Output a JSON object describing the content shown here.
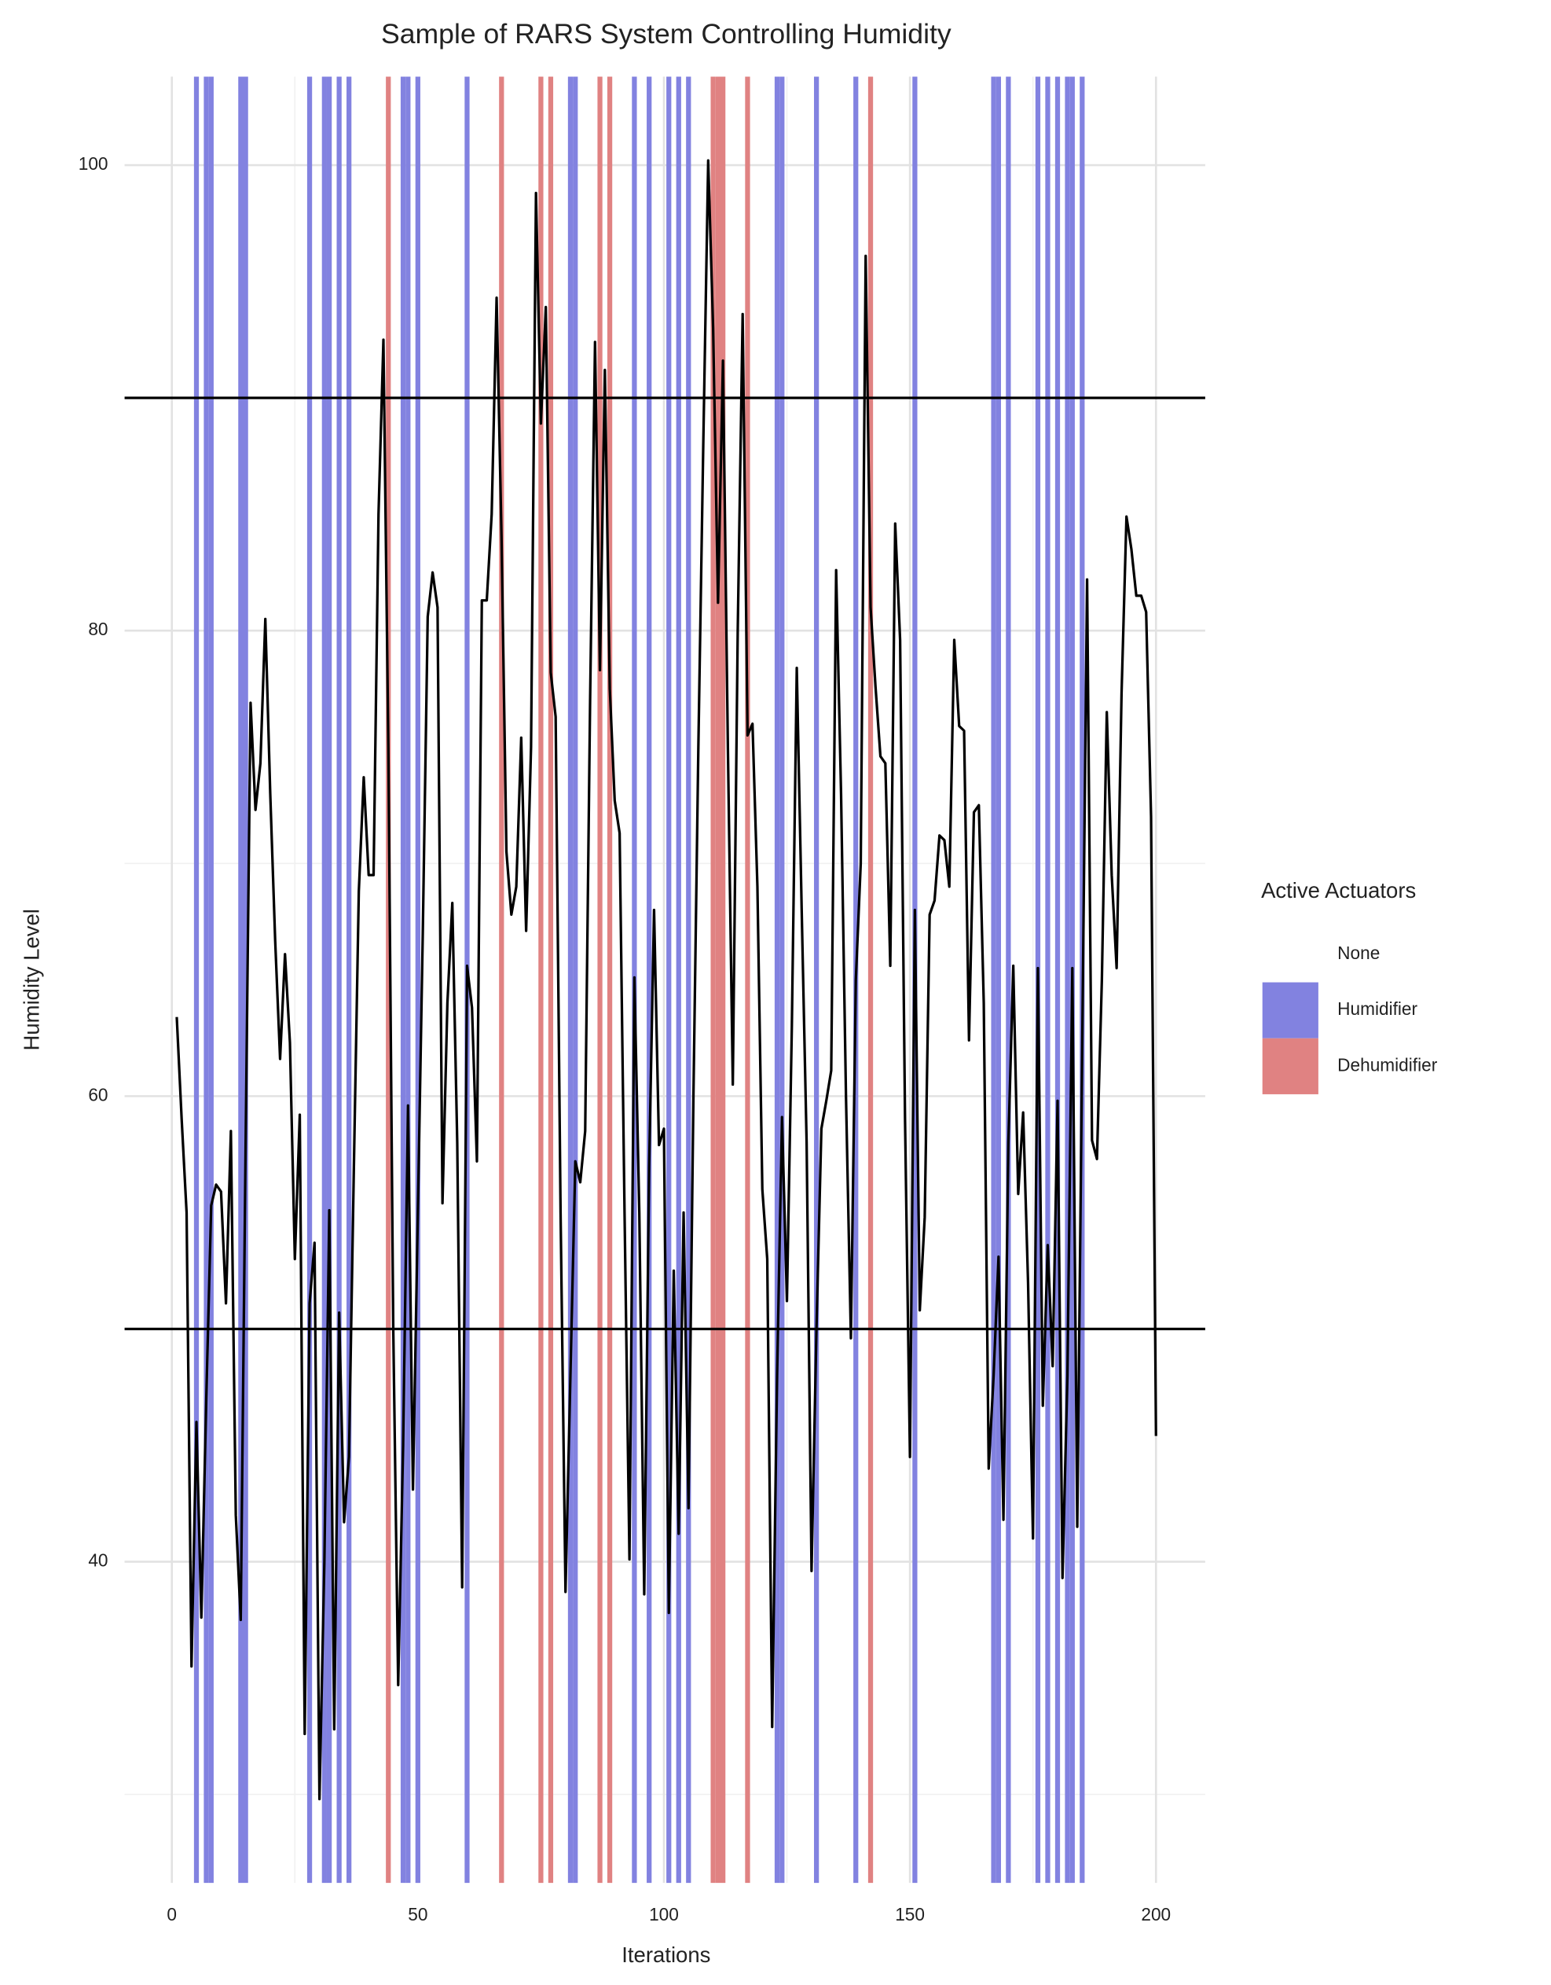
{
  "chart_data": {
    "type": "line",
    "title": "Sample of RARS System Controlling Humidity",
    "x_label": "Iterations",
    "y_label": "Humidity Level",
    "legend_title": "Active Actuators",
    "legend_position": "right",
    "x": [
      1,
      2,
      3,
      4,
      5,
      6,
      7,
      8,
      9,
      10,
      11,
      12,
      13,
      14,
      15,
      16,
      17,
      18,
      19,
      20,
      21,
      22,
      23,
      24,
      25,
      26,
      27,
      28,
      29,
      30,
      31,
      32,
      33,
      34,
      35,
      36,
      37,
      38,
      39,
      40,
      41,
      42,
      43,
      44,
      45,
      46,
      47,
      48,
      49,
      50,
      51,
      52,
      53,
      54,
      55,
      56,
      57,
      58,
      59,
      60,
      61,
      62,
      63,
      64,
      65,
      66,
      67,
      68,
      69,
      70,
      71,
      72,
      73,
      74,
      75,
      76,
      77,
      78,
      79,
      80,
      81,
      82,
      83,
      84,
      85,
      86,
      87,
      88,
      89,
      90,
      91,
      92,
      93,
      94,
      95,
      96,
      97,
      98,
      99,
      100,
      101,
      102,
      103,
      104,
      105,
      106,
      107,
      108,
      109,
      110,
      111,
      112,
      113,
      114,
      115,
      116,
      117,
      118,
      119,
      120,
      121,
      122,
      123,
      124,
      125,
      126,
      127,
      128,
      129,
      130,
      131,
      132,
      133,
      134,
      135,
      136,
      137,
      138,
      139,
      140,
      141,
      142,
      143,
      144,
      145,
      146,
      147,
      148,
      149,
      150,
      151,
      152,
      153,
      154,
      155,
      156,
      157,
      158,
      159,
      160,
      161,
      162,
      163,
      164,
      165,
      166,
      167,
      168,
      169,
      170,
      171,
      172,
      173,
      174,
      175,
      176,
      177,
      178,
      179,
      180,
      181,
      182,
      183,
      184,
      185,
      186,
      187,
      188,
      189,
      190,
      191,
      192,
      193,
      194,
      195,
      196,
      197,
      198,
      199,
      200
    ],
    "series": [
      {
        "name": "Humidity Level",
        "color": "#000000",
        "values": [
          63.4,
          59,
          55,
          35.5,
          46,
          37.6,
          47,
          55.3,
          56.2,
          55.9,
          51.1,
          58.5,
          42,
          37.5,
          58,
          76.9,
          72.3,
          74.3,
          80.5,
          73,
          66.7,
          61.6,
          66.1,
          62.3,
          53,
          59.2,
          32.6,
          51.1,
          53.7,
          29.8,
          40,
          55.1,
          32.8,
          50.7,
          41.7,
          44.5,
          57,
          68.8,
          73.7,
          69.5,
          69.5,
          85,
          92.5,
          75,
          50,
          34.7,
          45,
          59.6,
          43.1,
          55,
          67,
          80.6,
          82.5,
          81,
          55.4,
          64,
          68.3,
          58,
          38.9,
          65.6,
          63.8,
          57.2,
          81.3,
          81.3,
          85,
          94.3,
          84,
          70.5,
          67.8,
          69,
          75.4,
          67.1,
          75,
          98.8,
          88.9,
          93.9,
          78.2,
          76.3,
          55,
          38.7,
          48,
          57.2,
          56.3,
          58.5,
          77,
          92.4,
          78.3,
          91.2,
          77.5,
          72.7,
          71.3,
          55,
          40.1,
          65.1,
          55,
          38.6,
          57,
          68,
          57.9,
          58.6,
          37.8,
          52.5,
          41.2,
          55,
          42.3,
          60,
          75,
          88,
          100.2,
          93,
          81.2,
          91.6,
          75,
          60.5,
          80,
          93.6,
          75.5,
          76,
          69,
          56,
          53,
          32.9,
          48,
          59.1,
          51.2,
          63,
          78.4,
          68,
          58,
          39.6,
          50,
          58.6,
          59.8,
          61.1,
          82.6,
          73,
          60,
          49.6,
          65,
          70,
          96.1,
          81,
          77.6,
          74.6,
          74.3,
          65.6,
          84.6,
          79.6,
          59,
          44.5,
          68,
          50.8,
          54.8,
          67.8,
          68.4,
          71.2,
          71,
          69,
          79.6,
          75.9,
          75.7,
          62.4,
          72.2,
          72.5,
          64,
          44,
          48,
          53.1,
          41.8,
          58,
          65.6,
          55.8,
          59.3,
          52,
          41,
          65.5,
          46.7,
          53.6,
          48.4,
          59.8,
          39.3,
          48,
          65.5,
          41.5,
          62,
          82.2,
          58.1,
          57.3,
          65,
          76.5,
          69.5,
          65.5,
          77.3,
          84.9,
          83.5,
          81.5,
          81.5,
          80.8,
          72,
          45.4
        ]
      }
    ],
    "bands": [
      {
        "name": "None",
        "color": "#ffffff",
        "x": []
      },
      {
        "name": "Humidifier",
        "color": "#8282e0",
        "x": [
          5,
          7,
          8,
          14,
          15,
          28,
          31,
          32,
          34,
          36,
          47,
          48,
          50,
          60,
          81,
          82,
          94,
          97,
          101,
          103,
          105,
          123,
          124,
          131,
          139,
          151,
          167,
          168,
          170,
          176,
          178,
          180,
          182,
          183,
          185
        ]
      },
      {
        "name": "Dehumidifier",
        "color": "#e08282",
        "x": [
          44,
          67,
          75,
          77,
          87,
          89,
          110,
          111,
          112,
          117,
          142
        ]
      }
    ],
    "thresholds": [
      50,
      90
    ],
    "xlim": [
      -9.6,
      210
    ],
    "xticks": [
      0,
      50,
      100,
      150,
      200
    ],
    "ylim": [
      26.2,
      103.8
    ],
    "yticks": [
      40,
      60,
      80,
      100
    ],
    "grid": true
  }
}
